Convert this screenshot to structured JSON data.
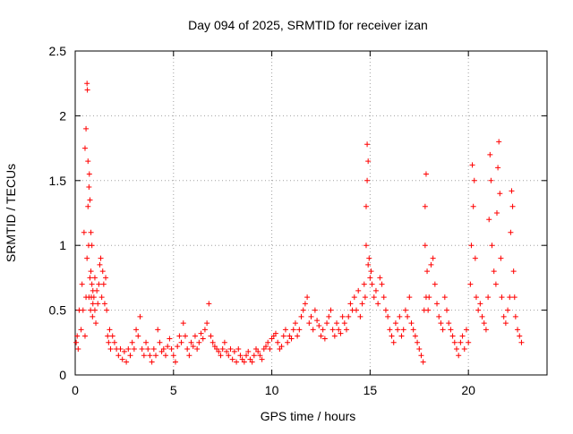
{
  "chart_data": {
    "type": "scatter",
    "title": "Day 094 of 2025, SRMTID for receiver izan",
    "xlabel": "GPS time / hours",
    "ylabel": "SRMTID / TECUs",
    "xlim": [
      0,
      24
    ],
    "ylim": [
      0,
      2.5
    ],
    "xticks": [
      0,
      5,
      10,
      15,
      20
    ],
    "xtick_labels": [
      "0",
      "5",
      "10",
      "15",
      "20"
    ],
    "yticks": [
      0,
      0.5,
      1,
      1.5,
      2,
      2.5
    ],
    "ytick_labels": [
      "0",
      "0.5",
      "1",
      "1.5",
      "2",
      "2.5"
    ],
    "grid": true,
    "marker": "+",
    "color": "#ff0000",
    "series": [
      {
        "name": "SRMTID",
        "x": [
          0.05,
          0.1,
          0.15,
          0.2,
          0.3,
          0.35,
          0.4,
          0.45,
          0.5,
          0.5,
          0.55,
          0.55,
          0.6,
          0.6,
          0.62,
          0.65,
          0.65,
          0.68,
          0.7,
          0.7,
          0.72,
          0.75,
          0.75,
          0.78,
          0.8,
          0.8,
          0.82,
          0.85,
          0.85,
          0.88,
          0.9,
          0.9,
          0.95,
          1.0,
          1.0,
          1.05,
          1.1,
          1.15,
          1.2,
          1.25,
          1.3,
          1.35,
          1.4,
          1.45,
          1.5,
          1.55,
          1.6,
          1.65,
          1.7,
          1.75,
          1.8,
          1.9,
          2.0,
          2.1,
          2.2,
          2.3,
          2.4,
          2.5,
          2.6,
          2.7,
          2.8,
          2.9,
          3.0,
          3.1,
          3.2,
          3.3,
          3.4,
          3.5,
          3.6,
          3.7,
          3.8,
          3.9,
          4.0,
          4.1,
          4.2,
          4.3,
          4.4,
          4.5,
          4.6,
          4.7,
          4.8,
          4.9,
          5.0,
          5.1,
          5.2,
          5.3,
          5.4,
          5.5,
          5.6,
          5.7,
          5.8,
          5.9,
          6.0,
          6.1,
          6.2,
          6.3,
          6.4,
          6.5,
          6.6,
          6.7,
          6.8,
          6.9,
          7.0,
          7.1,
          7.2,
          7.3,
          7.4,
          7.5,
          7.6,
          7.7,
          7.8,
          7.9,
          8.0,
          8.1,
          8.2,
          8.3,
          8.4,
          8.5,
          8.6,
          8.7,
          8.8,
          8.9,
          9.0,
          9.1,
          9.2,
          9.3,
          9.4,
          9.5,
          9.6,
          9.7,
          9.8,
          9.9,
          10.0,
          10.1,
          10.2,
          10.3,
          10.4,
          10.5,
          10.6,
          10.7,
          10.8,
          10.9,
          11.0,
          11.1,
          11.2,
          11.3,
          11.4,
          11.5,
          11.6,
          11.7,
          11.8,
          11.9,
          12.0,
          12.1,
          12.2,
          12.3,
          12.4,
          12.5,
          12.6,
          12.7,
          12.8,
          12.9,
          13.0,
          13.1,
          13.2,
          13.3,
          13.4,
          13.5,
          13.6,
          13.7,
          13.8,
          13.9,
          14.0,
          14.1,
          14.2,
          14.3,
          14.4,
          14.5,
          14.6,
          14.7,
          14.75,
          14.8,
          14.8,
          14.85,
          14.85,
          14.9,
          14.9,
          14.95,
          15.0,
          15.05,
          15.1,
          15.2,
          15.3,
          15.4,
          15.5,
          15.6,
          15.7,
          15.8,
          15.9,
          16.0,
          16.1,
          16.2,
          16.3,
          16.4,
          16.5,
          16.6,
          16.7,
          16.8,
          16.9,
          17.0,
          17.1,
          17.2,
          17.3,
          17.4,
          17.5,
          17.6,
          17.7,
          17.75,
          17.8,
          17.8,
          17.85,
          17.85,
          17.9,
          17.95,
          18.0,
          18.1,
          18.2,
          18.3,
          18.4,
          18.5,
          18.6,
          18.7,
          18.8,
          18.9,
          19.0,
          19.1,
          19.2,
          19.3,
          19.4,
          19.5,
          19.6,
          19.7,
          19.8,
          19.9,
          20.0,
          20.1,
          20.15,
          20.2,
          20.25,
          20.3,
          20.35,
          20.4,
          20.5,
          20.6,
          20.7,
          20.8,
          20.9,
          21.0,
          21.05,
          21.1,
          21.15,
          21.2,
          21.3,
          21.4,
          21.45,
          21.5,
          21.55,
          21.6,
          21.65,
          21.7,
          21.8,
          21.9,
          22.0,
          22.1,
          22.15,
          22.2,
          22.25,
          22.3,
          22.35,
          22.4,
          22.5,
          22.6,
          22.7
        ],
        "y": [
          0.25,
          0.3,
          0.2,
          0.5,
          0.35,
          0.7,
          0.5,
          1.1,
          0.3,
          1.75,
          0.6,
          1.9,
          0.9,
          2.25,
          2.2,
          1.3,
          1.65,
          1.0,
          1.45,
          0.6,
          1.55,
          0.75,
          1.35,
          0.5,
          0.8,
          1.1,
          0.6,
          0.7,
          1.0,
          0.45,
          0.55,
          0.65,
          0.6,
          0.5,
          0.75,
          0.4,
          0.65,
          0.55,
          0.7,
          0.85,
          0.9,
          0.6,
          0.8,
          0.7,
          0.55,
          0.75,
          0.5,
          0.3,
          0.25,
          0.35,
          0.2,
          0.3,
          0.25,
          0.2,
          0.15,
          0.2,
          0.12,
          0.18,
          0.1,
          0.2,
          0.15,
          0.25,
          0.2,
          0.35,
          0.3,
          0.45,
          0.2,
          0.15,
          0.25,
          0.2,
          0.15,
          0.1,
          0.2,
          0.15,
          0.35,
          0.25,
          0.18,
          0.2,
          0.15,
          0.22,
          0.28,
          0.2,
          0.15,
          0.1,
          0.22,
          0.3,
          0.25,
          0.4,
          0.3,
          0.2,
          0.15,
          0.25,
          0.22,
          0.3,
          0.2,
          0.25,
          0.32,
          0.28,
          0.35,
          0.4,
          0.55,
          0.3,
          0.25,
          0.22,
          0.2,
          0.18,
          0.15,
          0.2,
          0.25,
          0.18,
          0.15,
          0.2,
          0.12,
          0.18,
          0.1,
          0.2,
          0.15,
          0.12,
          0.1,
          0.15,
          0.18,
          0.12,
          0.1,
          0.15,
          0.2,
          0.18,
          0.15,
          0.12,
          0.2,
          0.22,
          0.25,
          0.2,
          0.28,
          0.3,
          0.32,
          0.25,
          0.2,
          0.22,
          0.3,
          0.35,
          0.25,
          0.3,
          0.28,
          0.35,
          0.4,
          0.3,
          0.35,
          0.45,
          0.5,
          0.55,
          0.6,
          0.4,
          0.45,
          0.35,
          0.5,
          0.42,
          0.38,
          0.3,
          0.35,
          0.28,
          0.4,
          0.45,
          0.5,
          0.35,
          0.3,
          0.4,
          0.35,
          0.32,
          0.45,
          0.4,
          0.35,
          0.45,
          0.55,
          0.5,
          0.6,
          0.5,
          0.65,
          0.45,
          0.55,
          0.7,
          0.6,
          1.0,
          1.3,
          1.5,
          1.78,
          1.65,
          0.85,
          0.9,
          0.75,
          0.8,
          0.7,
          0.6,
          0.65,
          0.55,
          0.75,
          0.7,
          0.6,
          0.5,
          0.45,
          0.35,
          0.3,
          0.25,
          0.4,
          0.35,
          0.45,
          0.3,
          0.35,
          0.5,
          0.45,
          0.6,
          0.4,
          0.35,
          0.3,
          0.25,
          0.2,
          0.15,
          0.1,
          0.5,
          1.0,
          1.3,
          1.55,
          0.6,
          0.8,
          0.5,
          0.6,
          0.85,
          0.9,
          0.7,
          0.55,
          0.45,
          0.4,
          0.35,
          0.6,
          0.5,
          0.4,
          0.35,
          0.3,
          0.25,
          0.2,
          0.15,
          0.25,
          0.3,
          0.2,
          0.35,
          0.25,
          0.7,
          1.0,
          1.62,
          1.3,
          1.5,
          0.9,
          0.6,
          0.5,
          0.55,
          0.45,
          0.4,
          0.35,
          0.6,
          1.2,
          1.7,
          1.5,
          1.0,
          0.8,
          0.7,
          1.25,
          1.6,
          1.8,
          1.4,
          0.9,
          0.6,
          0.45,
          0.4,
          0.5,
          0.6,
          1.1,
          1.42,
          1.3,
          0.8,
          0.6,
          0.45,
          0.35,
          0.3,
          0.25
        ]
      }
    ]
  }
}
